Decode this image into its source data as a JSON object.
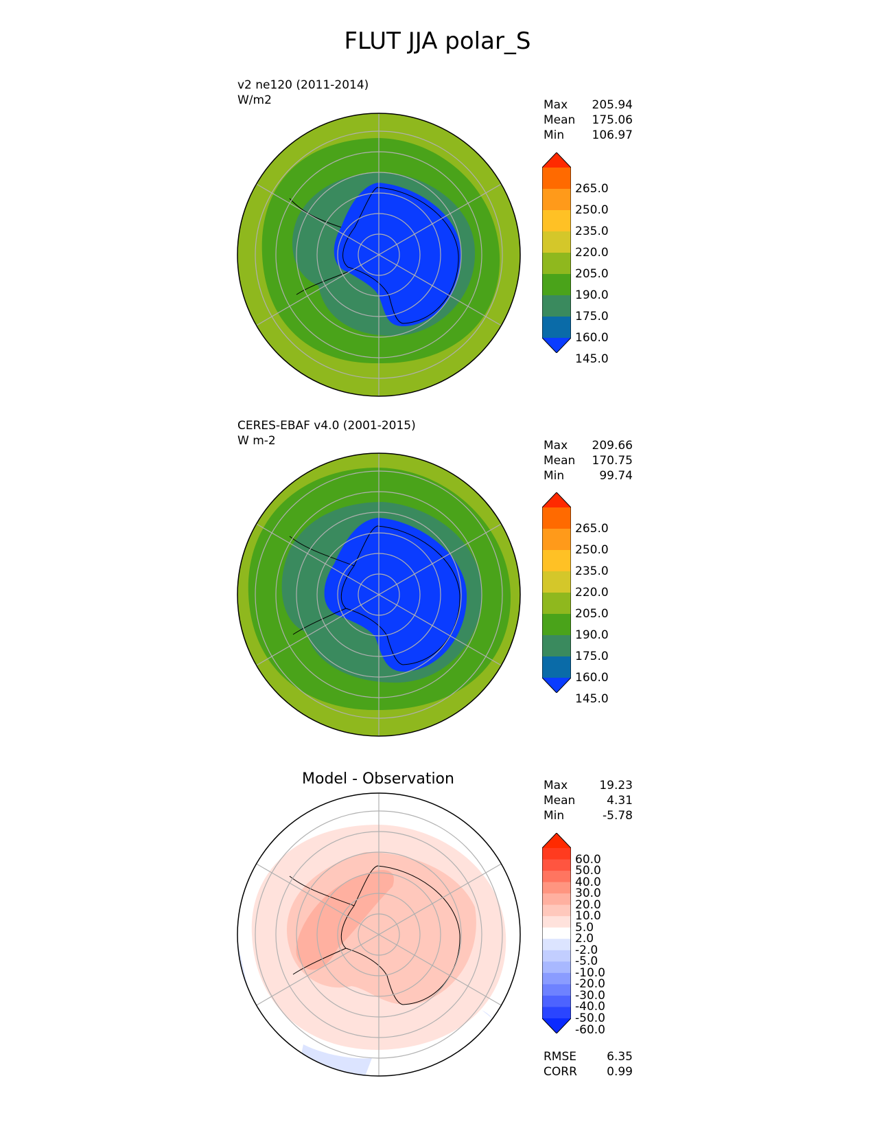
{
  "figure": {
    "title": "FLUT JJA polar_S"
  },
  "panels": [
    {
      "label": "v2 ne120 (2011-2014)",
      "units": "W/m2",
      "title": "",
      "stats": [
        {
          "label": "Max",
          "value": "205.94"
        },
        {
          "label": "Mean",
          "value": "175.06"
        },
        {
          "label": "Min",
          "value": "106.97"
        }
      ],
      "colorbar": {
        "labels": [
          "265.0",
          "250.0",
          "235.0",
          "220.0",
          "205.0",
          "190.0",
          "175.0",
          "160.0",
          "145.0"
        ],
        "colors": [
          "#FF2A00",
          "#FF6A00",
          "#FF9A1A",
          "#FFC125",
          "#D4C72A",
          "#8FB81E",
          "#4AA31A",
          "#3A8A5E",
          "#0A6BA8",
          "#0A3CFF"
        ]
      }
    },
    {
      "label": "CERES-EBAF v4.0 (2001-2015)",
      "units": "W m-2",
      "title": "",
      "stats": [
        {
          "label": "Max",
          "value": "209.66"
        },
        {
          "label": "Mean",
          "value": "170.75"
        },
        {
          "label": "Min",
          "value": "99.74"
        }
      ],
      "colorbar": {
        "labels": [
          "265.0",
          "250.0",
          "235.0",
          "220.0",
          "205.0",
          "190.0",
          "175.0",
          "160.0",
          "145.0"
        ],
        "colors": [
          "#FF2A00",
          "#FF6A00",
          "#FF9A1A",
          "#FFC125",
          "#D4C72A",
          "#8FB81E",
          "#4AA31A",
          "#3A8A5E",
          "#0A6BA8",
          "#0A3CFF"
        ]
      }
    },
    {
      "label": "",
      "units": "",
      "title": "Model - Observation",
      "stats": [
        {
          "label": "Max",
          "value": "19.23"
        },
        {
          "label": "Mean",
          "value": "4.31"
        },
        {
          "label": "Min",
          "value": "-5.78"
        }
      ],
      "metrics": [
        {
          "label": "RMSE",
          "value": "6.35"
        },
        {
          "label": "CORR",
          "value": "0.99"
        }
      ],
      "colorbar": {
        "labels": [
          "60.0",
          "50.0",
          "40.0",
          "30.0",
          "20.0",
          "10.0",
          "5.0",
          "2.0",
          "-2.0",
          "-5.0",
          "-10.0",
          "-20.0",
          "-30.0",
          "-40.0",
          "-50.0",
          "-60.0"
        ],
        "colors": [
          "#FF2A00",
          "#FF3B1F",
          "#FF5540",
          "#FF7560",
          "#FF9580",
          "#FFB0A0",
          "#FFC8BC",
          "#FFE2DC",
          "#FFFFFF",
          "#DCE4FF",
          "#C2CEFF",
          "#A8B8FF",
          "#8A9CFF",
          "#6E82FF",
          "#4D63FF",
          "#2A45FF",
          "#0A2AFF"
        ]
      }
    }
  ],
  "chart_data": {
    "type": "polar_map",
    "projection": "south polar stereographic",
    "grid": true,
    "fields": [
      {
        "name": "v2 ne120 (2011-2014)",
        "units": "W/m2",
        "max": 205.94,
        "mean": 175.06,
        "min": 106.97,
        "levels": [
          145,
          160,
          175,
          190,
          205,
          220,
          235,
          250,
          265
        ]
      },
      {
        "name": "CERES-EBAF v4.0 (2001-2015)",
        "units": "W m-2",
        "max": 209.66,
        "mean": 170.75,
        "min": 99.74,
        "levels": [
          145,
          160,
          175,
          190,
          205,
          220,
          235,
          250,
          265
        ]
      },
      {
        "name": "Model - Observation",
        "max": 19.23,
        "mean": 4.31,
        "min": -5.78,
        "rmse": 6.35,
        "corr": 0.99,
        "levels": [
          -60,
          -50,
          -40,
          -30,
          -20,
          -10,
          -5,
          -2,
          2,
          5,
          10,
          20,
          30,
          40,
          50,
          60
        ]
      }
    ]
  }
}
